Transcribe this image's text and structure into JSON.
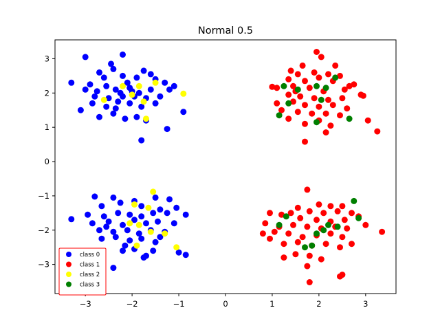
{
  "chart_data": {
    "type": "scatter",
    "title": "Normal 0.5",
    "xlabel": "",
    "ylabel": "",
    "xlim": [
      -3.65,
      3.65
    ],
    "ylim": [
      -3.85,
      3.55
    ],
    "xticks": [
      -3,
      -2,
      -1,
      0,
      1,
      2,
      3
    ],
    "yticks": [
      -3,
      -2,
      -1,
      0,
      1,
      2,
      3
    ],
    "grid": false,
    "legend_position": "lower-left",
    "legend_border_color": "#ff0000",
    "series": [
      {
        "name": "class 0",
        "color": "#0000ff",
        "points": [
          [
            -3.0,
            3.05
          ],
          [
            -2.45,
            2.85
          ],
          [
            -2.2,
            3.12
          ],
          [
            -2.7,
            2.6
          ],
          [
            -2.4,
            2.7
          ],
          [
            -1.75,
            2.65
          ],
          [
            -1.6,
            2.55
          ],
          [
            -2.6,
            2.45
          ],
          [
            -2.2,
            2.5
          ],
          [
            -1.9,
            2.45
          ],
          [
            -3.3,
            2.3
          ],
          [
            -2.9,
            2.25
          ],
          [
            -2.55,
            2.2
          ],
          [
            -2.1,
            2.3
          ],
          [
            -1.5,
            2.4
          ],
          [
            -1.3,
            2.3
          ],
          [
            -1.1,
            2.2
          ],
          [
            -3.0,
            2.1
          ],
          [
            -2.75,
            2.05
          ],
          [
            -2.35,
            2.1
          ],
          [
            -2.05,
            2.15
          ],
          [
            -1.85,
            2.0
          ],
          [
            -1.6,
            2.1
          ],
          [
            -1.2,
            2.1
          ],
          [
            -2.8,
            1.9
          ],
          [
            -2.5,
            1.85
          ],
          [
            -2.25,
            2.0
          ],
          [
            -1.95,
            1.9
          ],
          [
            -1.7,
            1.85
          ],
          [
            -1.4,
            1.9
          ],
          [
            -3.1,
            1.5
          ],
          [
            -2.85,
            1.7
          ],
          [
            -2.55,
            1.6
          ],
          [
            -2.3,
            1.75
          ],
          [
            -2.05,
            1.7
          ],
          [
            -1.8,
            1.6
          ],
          [
            -1.5,
            1.7
          ],
          [
            -0.9,
            1.45
          ],
          [
            -2.7,
            1.3
          ],
          [
            -2.4,
            1.4
          ],
          [
            -2.15,
            1.25
          ],
          [
            -1.9,
            1.3
          ],
          [
            -1.7,
            1.2
          ],
          [
            -1.25,
            0.95
          ],
          [
            -1.8,
            0.62
          ],
          [
            -2.2,
            1.9
          ],
          [
            -2.0,
            2.05
          ],
          [
            -2.35,
            1.55
          ]
        ]
      },
      {
        "name": "class 0",
        "color": "#0000ff",
        "points": [
          [
            -2.8,
            -1.02
          ],
          [
            -2.4,
            -1.05
          ],
          [
            -1.95,
            -1.15
          ],
          [
            -1.5,
            -1.05
          ],
          [
            -1.2,
            -1.1
          ],
          [
            -2.65,
            -1.3
          ],
          [
            -2.25,
            -1.2
          ],
          [
            -1.8,
            -1.3
          ],
          [
            -1.4,
            -1.4
          ],
          [
            -1.05,
            -1.35
          ],
          [
            -3.3,
            -1.68
          ],
          [
            -2.95,
            -1.55
          ],
          [
            -2.6,
            -1.6
          ],
          [
            -2.3,
            -1.5
          ],
          [
            -2.05,
            -1.55
          ],
          [
            -1.8,
            -1.6
          ],
          [
            -1.55,
            -1.5
          ],
          [
            -1.25,
            -1.5
          ],
          [
            -0.85,
            -1.55
          ],
          [
            -2.85,
            -1.8
          ],
          [
            -2.5,
            -1.75
          ],
          [
            -2.2,
            -1.85
          ],
          [
            -1.95,
            -1.7
          ],
          [
            -1.7,
            -1.8
          ],
          [
            -1.45,
            -1.75
          ],
          [
            -1.1,
            -1.8
          ],
          [
            -2.7,
            -2.0
          ],
          [
            -2.4,
            -2.05
          ],
          [
            -2.1,
            -2.0
          ],
          [
            -1.85,
            -2.1
          ],
          [
            -1.6,
            -2.0
          ],
          [
            -1.3,
            -2.05
          ],
          [
            -2.65,
            -2.25
          ],
          [
            -2.35,
            -2.2
          ],
          [
            -2.05,
            -2.3
          ],
          [
            -1.8,
            -2.25
          ],
          [
            -1.5,
            -2.35
          ],
          [
            -2.2,
            -2.6
          ],
          [
            -1.95,
            -2.55
          ],
          [
            -1.7,
            -2.75
          ],
          [
            -1.75,
            -2.8
          ],
          [
            -1.0,
            -2.65
          ],
          [
            -0.85,
            -2.72
          ],
          [
            -2.4,
            -3.1
          ],
          [
            -2.15,
            -2.45
          ],
          [
            -1.55,
            -2.6
          ],
          [
            -2.55,
            -1.9
          ],
          [
            -1.4,
            -2.2
          ]
        ]
      },
      {
        "name": "class 1",
        "color": "#ff0000",
        "points": [
          [
            1.95,
            3.2
          ],
          [
            2.05,
            3.05
          ],
          [
            1.65,
            2.8
          ],
          [
            2.35,
            2.8
          ],
          [
            1.4,
            2.65
          ],
          [
            1.55,
            2.55
          ],
          [
            1.9,
            2.6
          ],
          [
            2.2,
            2.55
          ],
          [
            2.45,
            2.5
          ],
          [
            1.35,
            2.4
          ],
          [
            1.7,
            2.35
          ],
          [
            2.0,
            2.45
          ],
          [
            2.3,
            2.35
          ],
          [
            2.65,
            2.2
          ],
          [
            2.75,
            2.25
          ],
          [
            1.0,
            2.18
          ],
          [
            1.1,
            2.15
          ],
          [
            1.45,
            2.2
          ],
          [
            1.8,
            2.15
          ],
          [
            2.1,
            2.05
          ],
          [
            2.55,
            2.1
          ],
          [
            2.9,
            1.95
          ],
          [
            2.95,
            1.92
          ],
          [
            1.35,
            1.95
          ],
          [
            1.6,
            1.9
          ],
          [
            1.9,
            1.85
          ],
          [
            2.2,
            1.8
          ],
          [
            2.5,
            1.85
          ],
          [
            1.1,
            1.7
          ],
          [
            1.45,
            1.75
          ],
          [
            1.7,
            1.65
          ],
          [
            2.0,
            1.6
          ],
          [
            2.3,
            1.65
          ],
          [
            2.6,
            1.55
          ],
          [
            1.2,
            1.5
          ],
          [
            1.55,
            1.45
          ],
          [
            1.85,
            1.4
          ],
          [
            2.15,
            1.4
          ],
          [
            2.45,
            1.35
          ],
          [
            1.35,
            1.25
          ],
          [
            1.7,
            1.1
          ],
          [
            2.0,
            1.2
          ],
          [
            2.25,
            1.05
          ],
          [
            2.15,
            0.85
          ],
          [
            1.7,
            0.58
          ],
          [
            3.05,
            1.2
          ],
          [
            3.25,
            0.88
          ],
          [
            1.5,
            2.05
          ]
        ]
      },
      {
        "name": "class 1",
        "color": "#ff0000",
        "points": [
          [
            1.75,
            -0.82
          ],
          [
            2.0,
            -1.25
          ],
          [
            1.55,
            -1.35
          ],
          [
            2.25,
            -1.3
          ],
          [
            2.5,
            -1.3
          ],
          [
            1.4,
            -1.5
          ],
          [
            1.8,
            -1.45
          ],
          [
            2.1,
            -1.5
          ],
          [
            2.4,
            -1.45
          ],
          [
            2.7,
            -1.5
          ],
          [
            0.95,
            -1.5
          ],
          [
            1.2,
            -1.55
          ],
          [
            1.6,
            -1.65
          ],
          [
            1.95,
            -1.7
          ],
          [
            2.25,
            -1.75
          ],
          [
            2.55,
            -1.7
          ],
          [
            2.85,
            -1.6
          ],
          [
            3.0,
            -1.85
          ],
          [
            0.85,
            -1.8
          ],
          [
            1.15,
            -1.9
          ],
          [
            1.45,
            -1.85
          ],
          [
            1.75,
            -1.9
          ],
          [
            2.05,
            -1.95
          ],
          [
            2.35,
            -1.9
          ],
          [
            2.6,
            -1.95
          ],
          [
            0.8,
            -2.1
          ],
          [
            1.05,
            -2.05
          ],
          [
            1.35,
            -2.1
          ],
          [
            1.65,
            -2.2
          ],
          [
            1.95,
            -2.15
          ],
          [
            2.25,
            -2.1
          ],
          [
            2.5,
            -2.2
          ],
          [
            0.95,
            -2.25
          ],
          [
            1.25,
            -2.4
          ],
          [
            1.55,
            -2.35
          ],
          [
            1.85,
            -2.45
          ],
          [
            2.15,
            -2.4
          ],
          [
            2.45,
            -2.5
          ],
          [
            2.7,
            -2.4
          ],
          [
            1.25,
            -2.8
          ],
          [
            1.5,
            -2.7
          ],
          [
            1.8,
            -2.75
          ],
          [
            2.05,
            -2.85
          ],
          [
            2.5,
            -3.3
          ],
          [
            2.45,
            -3.35
          ],
          [
            1.75,
            -3.05
          ],
          [
            1.8,
            -3.52
          ],
          [
            3.35,
            -2.05
          ]
        ]
      },
      {
        "name": "class 2",
        "color": "#ffff00",
        "points": [
          [
            -1.5,
            2.3
          ],
          [
            -1.85,
            2.2
          ],
          [
            -1.75,
            1.75
          ],
          [
            -2.0,
            1.95
          ],
          [
            -2.6,
            1.8
          ],
          [
            -0.9,
            1.98
          ],
          [
            -2.2,
            2.2
          ],
          [
            -1.7,
            1.25
          ],
          [
            -1.55,
            -0.88
          ],
          [
            -1.95,
            -1.25
          ],
          [
            -1.65,
            -1.35
          ],
          [
            -2.05,
            -1.8
          ],
          [
            -1.85,
            -1.85
          ],
          [
            -1.6,
            -2.05
          ],
          [
            -1.3,
            -2.1
          ],
          [
            -1.9,
            -2.45
          ],
          [
            -1.05,
            -2.5
          ]
        ]
      },
      {
        "name": "class 3",
        "color": "#007f00",
        "points": [
          [
            1.25,
            2.2
          ],
          [
            1.55,
            2.1
          ],
          [
            1.95,
            2.2
          ],
          [
            2.15,
            2.15
          ],
          [
            2.35,
            2.45
          ],
          [
            2.05,
            1.8
          ],
          [
            1.35,
            1.7
          ],
          [
            1.15,
            1.35
          ],
          [
            1.95,
            1.15
          ],
          [
            2.65,
            1.25
          ],
          [
            2.75,
            -1.15
          ],
          [
            1.3,
            -1.6
          ],
          [
            2.85,
            -1.65
          ],
          [
            1.15,
            -1.85
          ],
          [
            2.2,
            -1.85
          ],
          [
            2.4,
            -1.9
          ],
          [
            1.95,
            -2.1
          ],
          [
            1.7,
            -2.5
          ],
          [
            1.85,
            -2.45
          ],
          [
            2.1,
            -2.0
          ]
        ]
      }
    ]
  }
}
